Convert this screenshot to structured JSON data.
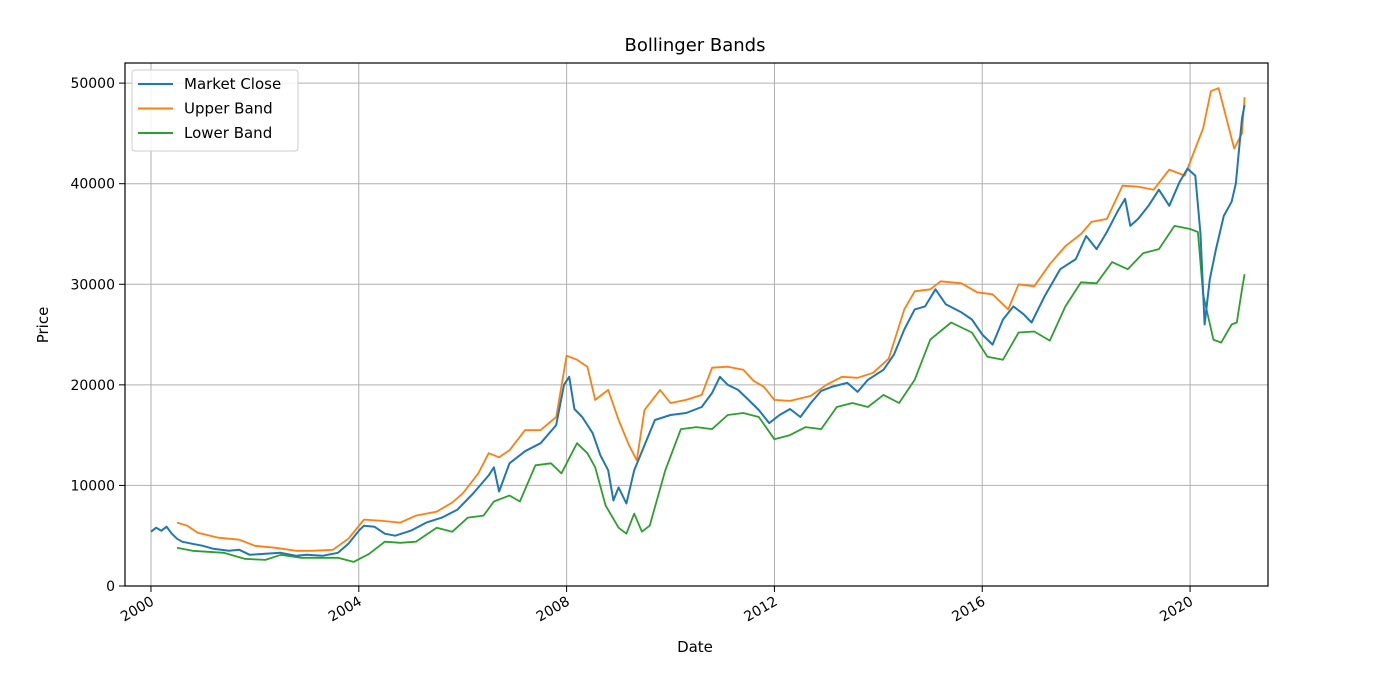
{
  "chart_data": {
    "type": "line",
    "title": "Bollinger Bands",
    "xlabel": "Date",
    "ylabel": "Price",
    "xlim": [
      1999.5,
      2021.5
    ],
    "ylim": [
      0,
      52000
    ],
    "x_ticks": [
      2000,
      2004,
      2008,
      2012,
      2016,
      2020
    ],
    "x_tick_labels": [
      "2000",
      "2004",
      "2008",
      "2012",
      "2016",
      "2020"
    ],
    "y_ticks": [
      0,
      10000,
      20000,
      30000,
      40000,
      50000
    ],
    "y_tick_labels": [
      "0",
      "10000",
      "20000",
      "30000",
      "40000",
      "50000"
    ],
    "grid": true,
    "legend_position": "top-left",
    "series": [
      {
        "name": "Market Close",
        "color": "#1f77b4",
        "points": [
          [
            2000.0,
            5400
          ],
          [
            2000.1,
            5800
          ],
          [
            2000.2,
            5500
          ],
          [
            2000.3,
            5900
          ],
          [
            2000.4,
            5200
          ],
          [
            2000.5,
            4700
          ],
          [
            2000.6,
            4400
          ],
          [
            2000.8,
            4200
          ],
          [
            2001.0,
            4000
          ],
          [
            2001.2,
            3700
          ],
          [
            2001.5,
            3500
          ],
          [
            2001.7,
            3600
          ],
          [
            2001.9,
            3100
          ],
          [
            2002.2,
            3200
          ],
          [
            2002.5,
            3300
          ],
          [
            2002.8,
            3000
          ],
          [
            2003.0,
            3100
          ],
          [
            2003.3,
            3000
          ],
          [
            2003.6,
            3300
          ],
          [
            2003.8,
            4200
          ],
          [
            2004.0,
            5500
          ],
          [
            2004.1,
            6000
          ],
          [
            2004.3,
            5900
          ],
          [
            2004.5,
            5200
          ],
          [
            2004.7,
            5000
          ],
          [
            2005.0,
            5500
          ],
          [
            2005.3,
            6300
          ],
          [
            2005.6,
            6800
          ],
          [
            2005.9,
            7600
          ],
          [
            2006.2,
            9200
          ],
          [
            2006.5,
            11000
          ],
          [
            2006.6,
            11800
          ],
          [
            2006.7,
            9400
          ],
          [
            2006.9,
            12200
          ],
          [
            2007.2,
            13400
          ],
          [
            2007.5,
            14200
          ],
          [
            2007.8,
            16000
          ],
          [
            2007.95,
            20000
          ],
          [
            2008.05,
            20800
          ],
          [
            2008.15,
            17600
          ],
          [
            2008.3,
            16800
          ],
          [
            2008.5,
            15200
          ],
          [
            2008.65,
            13000
          ],
          [
            2008.8,
            11500
          ],
          [
            2008.9,
            8500
          ],
          [
            2009.0,
            9800
          ],
          [
            2009.15,
            8200
          ],
          [
            2009.3,
            11500
          ],
          [
            2009.5,
            14000
          ],
          [
            2009.7,
            16500
          ],
          [
            2010.0,
            17000
          ],
          [
            2010.3,
            17200
          ],
          [
            2010.6,
            17800
          ],
          [
            2010.8,
            19200
          ],
          [
            2010.95,
            20800
          ],
          [
            2011.1,
            20000
          ],
          [
            2011.3,
            19500
          ],
          [
            2011.5,
            18500
          ],
          [
            2011.7,
            17500
          ],
          [
            2011.9,
            16200
          ],
          [
            2012.1,
            17000
          ],
          [
            2012.3,
            17600
          ],
          [
            2012.5,
            16800
          ],
          [
            2012.7,
            18200
          ],
          [
            2012.9,
            19400
          ],
          [
            2013.1,
            19800
          ],
          [
            2013.4,
            20200
          ],
          [
            2013.6,
            19300
          ],
          [
            2013.8,
            20500
          ],
          [
            2014.1,
            21500
          ],
          [
            2014.3,
            23000
          ],
          [
            2014.5,
            25500
          ],
          [
            2014.7,
            27500
          ],
          [
            2014.9,
            27800
          ],
          [
            2015.1,
            29500
          ],
          [
            2015.3,
            28000
          ],
          [
            2015.6,
            27200
          ],
          [
            2015.8,
            26500
          ],
          [
            2016.0,
            25000
          ],
          [
            2016.2,
            24000
          ],
          [
            2016.4,
            26500
          ],
          [
            2016.6,
            27800
          ],
          [
            2016.8,
            27000
          ],
          [
            2016.95,
            26200
          ],
          [
            2017.2,
            28800
          ],
          [
            2017.5,
            31500
          ],
          [
            2017.8,
            32500
          ],
          [
            2018.0,
            34800
          ],
          [
            2018.2,
            33500
          ],
          [
            2018.4,
            35200
          ],
          [
            2018.6,
            37200
          ],
          [
            2018.75,
            38500
          ],
          [
            2018.85,
            35800
          ],
          [
            2019.0,
            36500
          ],
          [
            2019.2,
            37800
          ],
          [
            2019.4,
            39400
          ],
          [
            2019.6,
            37800
          ],
          [
            2019.8,
            40200
          ],
          [
            2019.95,
            41500
          ],
          [
            2020.1,
            40800
          ],
          [
            2020.2,
            35000
          ],
          [
            2020.28,
            26000
          ],
          [
            2020.38,
            30500
          ],
          [
            2020.5,
            33500
          ],
          [
            2020.65,
            36800
          ],
          [
            2020.8,
            38200
          ],
          [
            2020.88,
            40000
          ],
          [
            2021.0,
            46500
          ],
          [
            2021.05,
            47800
          ]
        ]
      },
      {
        "name": "Upper Band",
        "color": "#ff7f0e",
        "points": [
          [
            2000.5,
            6300
          ],
          [
            2000.7,
            6000
          ],
          [
            2000.9,
            5300
          ],
          [
            2001.3,
            4800
          ],
          [
            2001.7,
            4600
          ],
          [
            2002.0,
            4000
          ],
          [
            2002.4,
            3800
          ],
          [
            2002.8,
            3500
          ],
          [
            2003.1,
            3500
          ],
          [
            2003.5,
            3600
          ],
          [
            2003.8,
            4700
          ],
          [
            2004.1,
            6600
          ],
          [
            2004.4,
            6500
          ],
          [
            2004.8,
            6300
          ],
          [
            2005.1,
            7000
          ],
          [
            2005.5,
            7400
          ],
          [
            2005.8,
            8300
          ],
          [
            2006.0,
            9200
          ],
          [
            2006.3,
            11200
          ],
          [
            2006.5,
            13200
          ],
          [
            2006.7,
            12800
          ],
          [
            2006.9,
            13500
          ],
          [
            2007.2,
            15500
          ],
          [
            2007.5,
            15500
          ],
          [
            2007.8,
            16800
          ],
          [
            2008.0,
            22900
          ],
          [
            2008.2,
            22500
          ],
          [
            2008.4,
            21800
          ],
          [
            2008.55,
            18500
          ],
          [
            2008.8,
            19500
          ],
          [
            2009.0,
            16500
          ],
          [
            2009.2,
            14000
          ],
          [
            2009.35,
            12500
          ],
          [
            2009.5,
            17500
          ],
          [
            2009.8,
            19500
          ],
          [
            2010.0,
            18200
          ],
          [
            2010.3,
            18500
          ],
          [
            2010.6,
            19000
          ],
          [
            2010.8,
            21700
          ],
          [
            2011.1,
            21800
          ],
          [
            2011.4,
            21500
          ],
          [
            2011.6,
            20400
          ],
          [
            2011.8,
            19800
          ],
          [
            2012.0,
            18500
          ],
          [
            2012.3,
            18400
          ],
          [
            2012.7,
            18900
          ],
          [
            2013.0,
            20000
          ],
          [
            2013.3,
            20800
          ],
          [
            2013.6,
            20700
          ],
          [
            2013.9,
            21200
          ],
          [
            2014.2,
            22600
          ],
          [
            2014.5,
            27500
          ],
          [
            2014.7,
            29300
          ],
          [
            2015.0,
            29500
          ],
          [
            2015.2,
            30300
          ],
          [
            2015.6,
            30100
          ],
          [
            2015.9,
            29200
          ],
          [
            2016.2,
            29000
          ],
          [
            2016.5,
            27500
          ],
          [
            2016.7,
            30000
          ],
          [
            2017.0,
            29800
          ],
          [
            2017.3,
            32000
          ],
          [
            2017.6,
            33800
          ],
          [
            2017.9,
            35000
          ],
          [
            2018.1,
            36200
          ],
          [
            2018.4,
            36500
          ],
          [
            2018.7,
            39800
          ],
          [
            2019.0,
            39700
          ],
          [
            2019.3,
            39400
          ],
          [
            2019.6,
            41400
          ],
          [
            2019.9,
            40800
          ],
          [
            2020.1,
            43500
          ],
          [
            2020.25,
            45500
          ],
          [
            2020.4,
            49200
          ],
          [
            2020.55,
            49500
          ],
          [
            2020.7,
            46500
          ],
          [
            2020.85,
            43500
          ],
          [
            2021.0,
            45000
          ],
          [
            2021.05,
            48600
          ]
        ]
      },
      {
        "name": "Lower Band",
        "color": "#2ca02c",
        "points": [
          [
            2000.5,
            3800
          ],
          [
            2000.8,
            3500
          ],
          [
            2001.1,
            3400
          ],
          [
            2001.4,
            3300
          ],
          [
            2001.8,
            2700
          ],
          [
            2002.2,
            2600
          ],
          [
            2002.5,
            3100
          ],
          [
            2002.9,
            2800
          ],
          [
            2003.2,
            2800
          ],
          [
            2003.6,
            2800
          ],
          [
            2003.9,
            2400
          ],
          [
            2004.2,
            3200
          ],
          [
            2004.5,
            4400
          ],
          [
            2004.8,
            4300
          ],
          [
            2005.1,
            4400
          ],
          [
            2005.5,
            5800
          ],
          [
            2005.8,
            5400
          ],
          [
            2006.1,
            6800
          ],
          [
            2006.4,
            7000
          ],
          [
            2006.6,
            8400
          ],
          [
            2006.9,
            9000
          ],
          [
            2007.1,
            8400
          ],
          [
            2007.4,
            12000
          ],
          [
            2007.7,
            12200
          ],
          [
            2007.9,
            11200
          ],
          [
            2008.2,
            14200
          ],
          [
            2008.4,
            13200
          ],
          [
            2008.55,
            11800
          ],
          [
            2008.75,
            8000
          ],
          [
            2009.0,
            5800
          ],
          [
            2009.15,
            5200
          ],
          [
            2009.3,
            7200
          ],
          [
            2009.45,
            5400
          ],
          [
            2009.6,
            6000
          ],
          [
            2009.9,
            11500
          ],
          [
            2010.2,
            15600
          ],
          [
            2010.5,
            15800
          ],
          [
            2010.8,
            15600
          ],
          [
            2011.1,
            17000
          ],
          [
            2011.4,
            17200
          ],
          [
            2011.7,
            16800
          ],
          [
            2012.0,
            14600
          ],
          [
            2012.3,
            15000
          ],
          [
            2012.6,
            15800
          ],
          [
            2012.9,
            15600
          ],
          [
            2013.2,
            17800
          ],
          [
            2013.5,
            18200
          ],
          [
            2013.8,
            17800
          ],
          [
            2014.1,
            19000
          ],
          [
            2014.4,
            18200
          ],
          [
            2014.7,
            20500
          ],
          [
            2015.0,
            24500
          ],
          [
            2015.4,
            26200
          ],
          [
            2015.8,
            25200
          ],
          [
            2016.1,
            22800
          ],
          [
            2016.4,
            22500
          ],
          [
            2016.7,
            25200
          ],
          [
            2017.0,
            25300
          ],
          [
            2017.3,
            24400
          ],
          [
            2017.6,
            27800
          ],
          [
            2017.9,
            30200
          ],
          [
            2018.2,
            30100
          ],
          [
            2018.5,
            32200
          ],
          [
            2018.8,
            31500
          ],
          [
            2019.1,
            33100
          ],
          [
            2019.4,
            33500
          ],
          [
            2019.7,
            35800
          ],
          [
            2020.0,
            35500
          ],
          [
            2020.15,
            35200
          ],
          [
            2020.25,
            29000
          ],
          [
            2020.45,
            24500
          ],
          [
            2020.6,
            24200
          ],
          [
            2020.8,
            26000
          ],
          [
            2020.9,
            26200
          ],
          [
            2021.0,
            29500
          ],
          [
            2021.05,
            31000
          ]
        ]
      }
    ]
  }
}
